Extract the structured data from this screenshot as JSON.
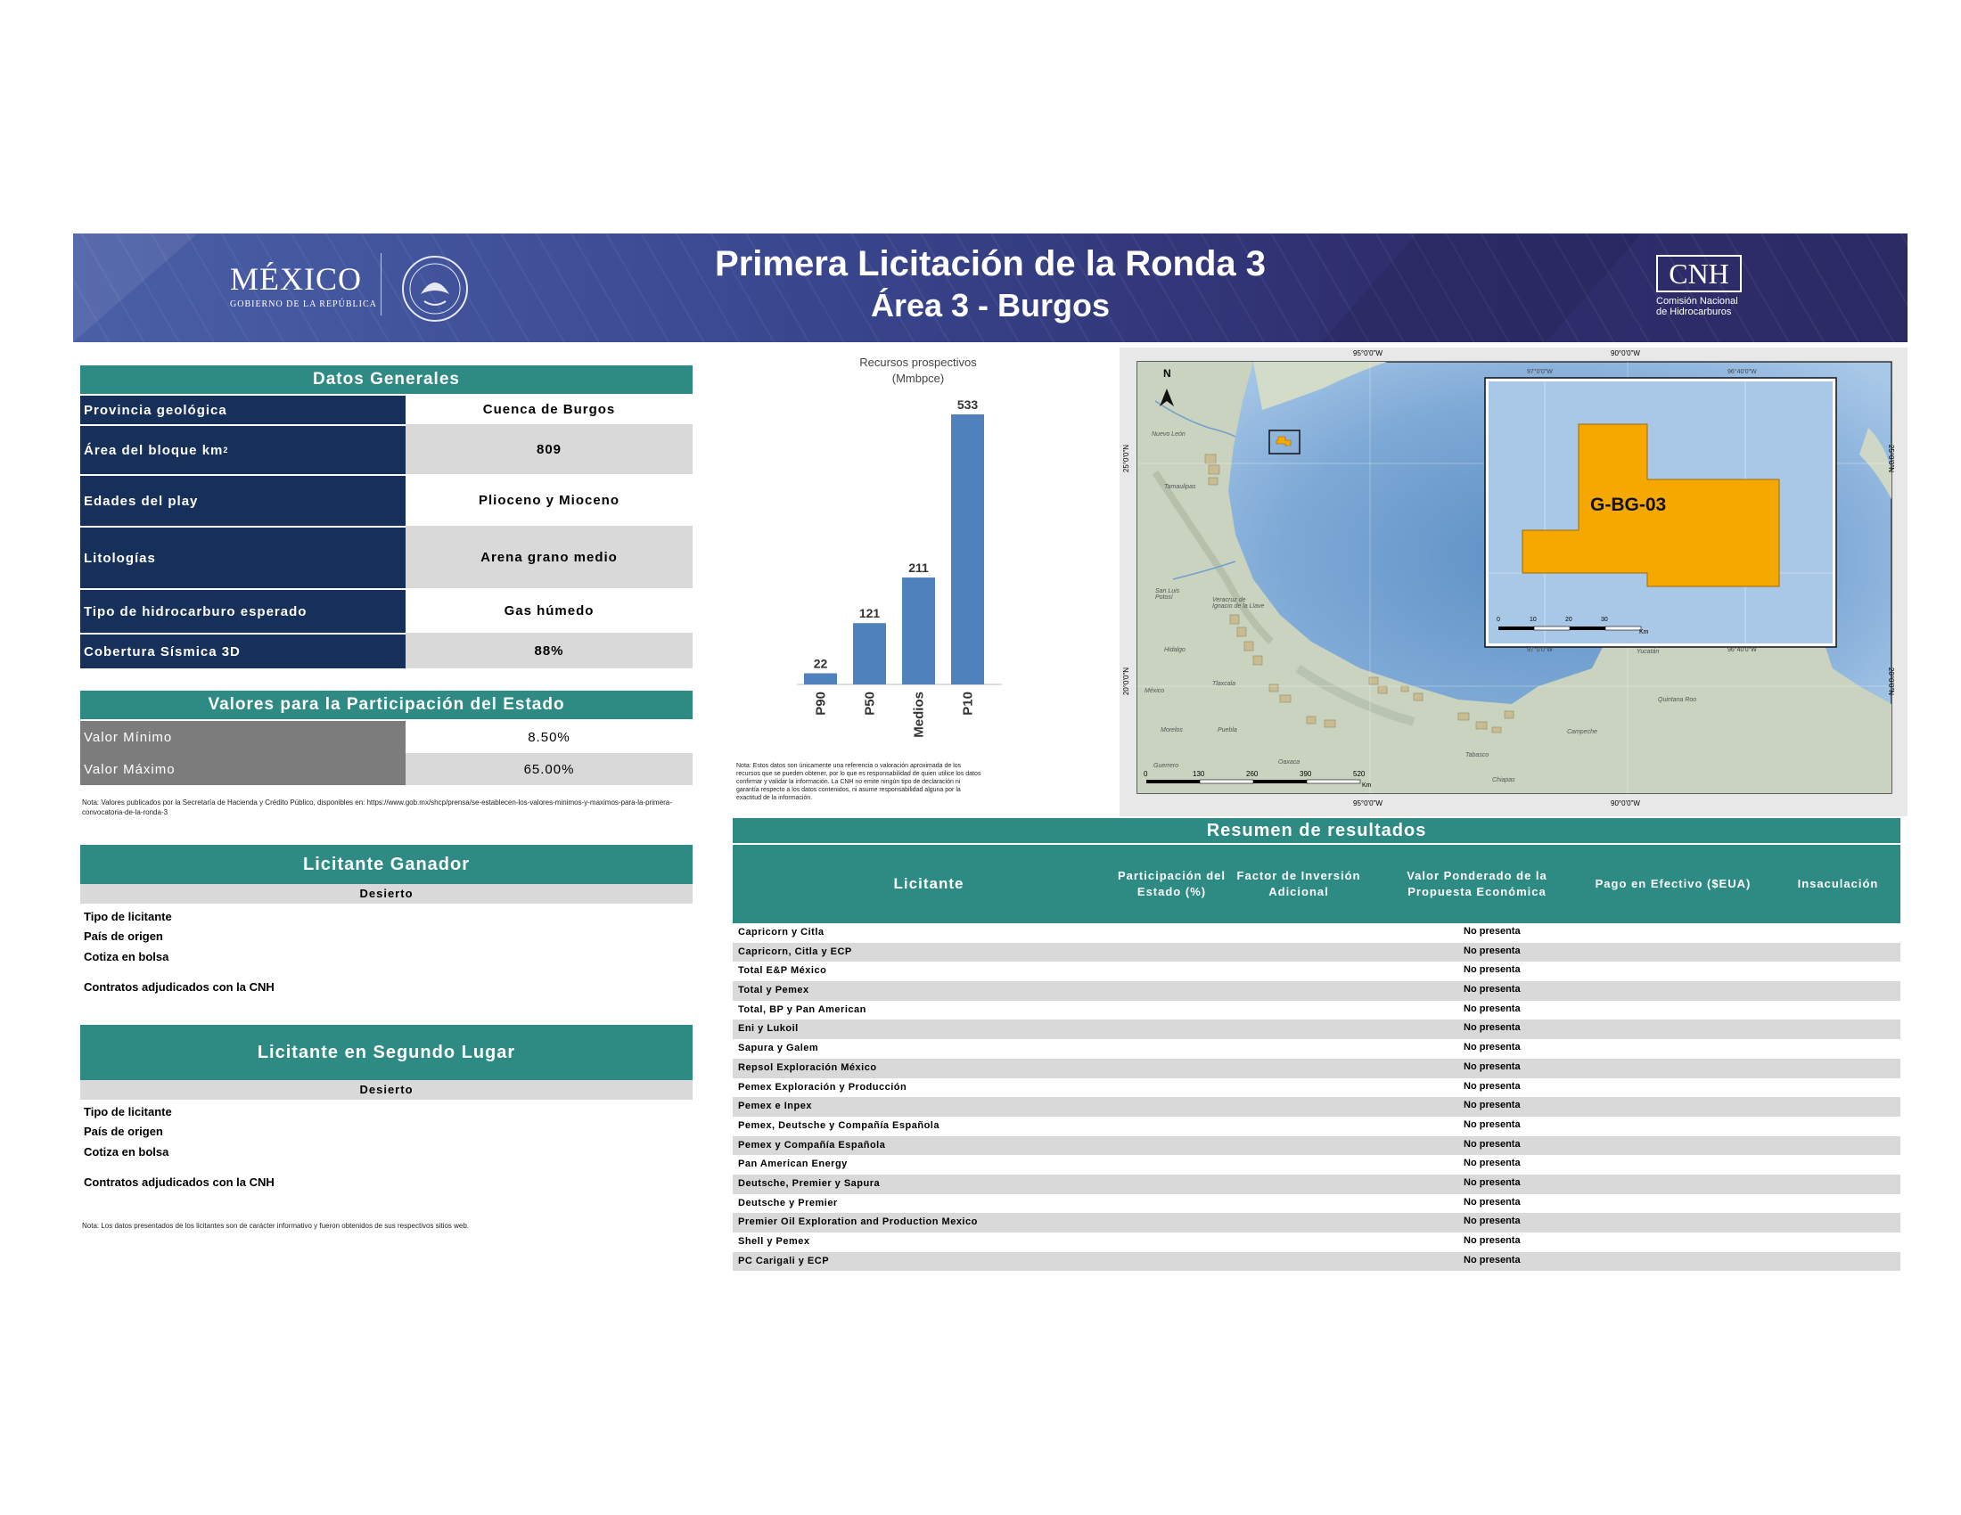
{
  "header": {
    "title": "Primera Licitación de la Ronda 3",
    "subtitle": "Área 3 - Burgos",
    "logo_left_main": "MÉXICO",
    "logo_left_sub": "GOBIERNO DE LA REPÚBLICA",
    "logo_right_main": "CNH",
    "logo_right_sub1": "Comisión Nacional",
    "logo_right_sub2": "de Hidrocarburos"
  },
  "datos_generales": {
    "title": "Datos Generales",
    "rows": [
      {
        "label": "Provincia geológica",
        "value": "Cuenca de Burgos"
      },
      {
        "label": "Área del bloque km²",
        "value": "809"
      },
      {
        "label": "Edades del play",
        "value": "Plioceno y Mioceno"
      },
      {
        "label": "Litologías",
        "value": "Arena grano medio"
      },
      {
        "label": "Tipo de hidrocarburo esperado",
        "value": "Gas húmedo"
      },
      {
        "label": "Cobertura Sísmica 3D",
        "value": "88%"
      }
    ]
  },
  "valores": {
    "title": "Valores para la Participación del Estado",
    "rows": [
      {
        "label": "Valor Mínimo",
        "value": "8.50%"
      },
      {
        "label": "Valor Máximo",
        "value": "65.00%"
      }
    ],
    "note": "Nota: Valores publicados por la Secretaría de Hacienda y Crédito Público, disponibles en: https://www.gob.mx/shcp/prensa/se-establecen-los-valores-minimos-y-maximos-para-la-primera-convocatoria-de-la-ronda-3"
  },
  "ganador": {
    "title": "Licitante Ganador",
    "status": "Desierto",
    "fields": [
      "Tipo de licitante",
      "País de origen",
      "Cotiza en bolsa",
      "Contratos adjudicados con la CNH"
    ]
  },
  "segundo": {
    "title": "Licitante en Segundo Lugar",
    "status": "Desierto",
    "fields": [
      "Tipo de licitante",
      "País de origen",
      "Cotiza en bolsa",
      "Contratos adjudicados con la CNH"
    ],
    "note": "Nota: Los datos presentados de los licitantes son de carácter informativo y fueron obtenidos de sus respectivos sitios web."
  },
  "chart_data": {
    "type": "bar",
    "title": "Recursos prospectivos",
    "subtitle": "(Mmbpce)",
    "categories": [
      "P90",
      "P50",
      "Medios",
      "P10"
    ],
    "values": [
      22,
      121,
      211,
      533
    ],
    "ylim": [
      0,
      533
    ],
    "color": "#4f81bd",
    "note": "Nota: Estos datos son únicamente una referencia o valoración aproximada de los recursos que se pueden obtener, por lo que es responsabilidad de quien utilice los datos confirmar y validar la información. La CNH no emite ningún tipo de declaración ni garantía respecto a los datos contenidos, ni asume responsabilidad alguna por la exactitud de la información."
  },
  "map": {
    "block_label": "G-BG-03",
    "block_color": "#f5a800",
    "top_labels": [
      "95°0'0\"W",
      "90°0'0\"W"
    ],
    "bottom_labels": [
      "95°0'0\"W",
      "90°0'0\"W"
    ],
    "left_labels": [
      "25°0'0\"N",
      "20°0'0\"N"
    ],
    "right_labels": [
      "25°0'0\"N",
      "20°0'0\"N"
    ],
    "scale_labels": [
      "0",
      "130",
      "260",
      "390",
      "520"
    ],
    "scale_unit": "Km",
    "inset_top_labels": [
      "97°0'0\"W",
      "96°40'0\"W"
    ],
    "inset_bottom_labels": [
      "97°0'0\"W",
      "96°40'0\"W"
    ],
    "inset_scale_labels": [
      "0",
      "10",
      "20",
      "30"
    ],
    "inset_scale_unit": "Km",
    "north": "N",
    "places": [
      "Nuevo León",
      "Tamaulipas",
      "San Luis Potosí",
      "Veracruz de Ignacio de la Llave",
      "Hidalgo",
      "México",
      "Tlaxcala",
      "Puebla",
      "Morelos",
      "Guerrero",
      "Oaxaca",
      "Tabasco",
      "Chiapas",
      "Campeche",
      "Yucatán",
      "Quintana Roo"
    ]
  },
  "resumen": {
    "title": "Resumen de resultados",
    "columns": [
      "Licitante",
      "Participación del Estado (%)",
      "Factor de Inversión Adicional",
      "Valor Ponderado de la Propuesta Económica",
      "Pago en Efectivo ($EUA)",
      "Insaculación"
    ],
    "rows": [
      {
        "name": "Capricorn y Citla",
        "result": "No presenta"
      },
      {
        "name": "Capricorn, Citla y ECP",
        "result": "No presenta"
      },
      {
        "name": "Total E&P México",
        "result": "No presenta"
      },
      {
        "name": "Total y Pemex",
        "result": "No presenta"
      },
      {
        "name": "Total, BP y Pan American",
        "result": "No presenta"
      },
      {
        "name": "Eni y Lukoil",
        "result": "No presenta"
      },
      {
        "name": "Sapura y Galem",
        "result": "No presenta"
      },
      {
        "name": "Repsol Exploración México",
        "result": "No presenta"
      },
      {
        "name": "Pemex Exploración y Producción",
        "result": "No presenta"
      },
      {
        "name": "Pemex e Inpex",
        "result": "No presenta"
      },
      {
        "name": "Pemex, Deutsche y Compañía Española",
        "result": "No presenta"
      },
      {
        "name": "Pemex y Compañía Española",
        "result": "No presenta"
      },
      {
        "name": "Pan American Energy",
        "result": "No presenta"
      },
      {
        "name": "Deutsche, Premier y Sapura",
        "result": "No presenta"
      },
      {
        "name": "Deutsche y Premier",
        "result": "No presenta"
      },
      {
        "name": "Premier Oil Exploration and Production Mexico",
        "result": "No presenta"
      },
      {
        "name": "Shell y Pemex",
        "result": "No presenta"
      },
      {
        "name": "PC Carigali y ECP",
        "result": "No presenta"
      }
    ]
  }
}
